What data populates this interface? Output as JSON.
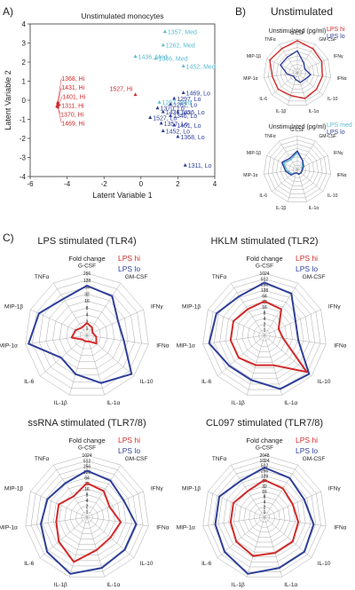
{
  "panel_labels": {
    "A": "A)",
    "B": "B)",
    "C": "C)"
  },
  "colors": {
    "hi": "#d42a2a",
    "lo": "#2e3f9a",
    "med": "#5bbcd0",
    "grid": "#aaaaaa",
    "text": "#222222"
  },
  "radar_axes": [
    "G-CSF",
    "GM-CSF",
    "IFNγ",
    "IFNα",
    "IL-10",
    "IL-1α",
    "IL-1β",
    "IL-6",
    "MIP-1α",
    "MIP-1β",
    "TNFα"
  ],
  "chart_data": [
    {
      "type": "scatter",
      "title": "Unstimulated monocytes",
      "xlabel": "Latent Variable 1",
      "ylabel": "Latent Variable 2",
      "xlim": [
        -6,
        4
      ],
      "ylim": [
        -4,
        4
      ],
      "xticks": [
        "-6",
        "-4",
        "-2",
        "0",
        "2",
        "4"
      ],
      "yticks": [
        "-4",
        "-3",
        "-2",
        "-1",
        "0",
        "1",
        "2",
        "3",
        "4"
      ],
      "series": [
        {
          "group": "hi",
          "points": [
            {
              "x": -4.5,
              "y": -0.1,
              "label": "1368, Hi"
            },
            {
              "x": -4.5,
              "y": -0.15,
              "label": "1431, Hi"
            },
            {
              "x": -4.45,
              "y": -0.2,
              "label": "1401, Hi"
            },
            {
              "x": -4.5,
              "y": -0.25,
              "label": "1311, Hi"
            },
            {
              "x": -4.55,
              "y": -0.3,
              "label": "1370, Hi"
            },
            {
              "x": -4.5,
              "y": -0.35,
              "label": "1469, Hi"
            },
            {
              "x": -0.3,
              "y": 0.3,
              "label": "1527, Hi"
            }
          ]
        },
        {
          "group": "med",
          "points": [
            {
              "x": 1.3,
              "y": 3.6,
              "label": "1357, Med"
            },
            {
              "x": 1.2,
              "y": 2.9,
              "label": "1262, Med"
            },
            {
              "x": -0.3,
              "y": 2.3,
              "label": "1436, Med"
            },
            {
              "x": 0.8,
              "y": 2.2,
              "label": "1346, Med"
            },
            {
              "x": 2.3,
              "y": 1.8,
              "label": "1452, Med"
            },
            {
              "x": 1.0,
              "y": -0.1,
              "label": "1297, Med"
            }
          ]
        },
        {
          "group": "lo",
          "points": [
            {
              "x": 2.3,
              "y": 0.4,
              "label": "1469, Lo"
            },
            {
              "x": 1.8,
              "y": 0.1,
              "label": "1297, Lo"
            },
            {
              "x": 1.6,
              "y": -0.2,
              "label": "1262, Lo"
            },
            {
              "x": 0.9,
              "y": -0.4,
              "label": "1370, Lo"
            },
            {
              "x": 1.2,
              "y": -0.6,
              "label": "1431, Lo"
            },
            {
              "x": 2.0,
              "y": -0.6,
              "label": "1436, Lo"
            },
            {
              "x": 1.6,
              "y": -0.8,
              "label": "1346, Lo"
            },
            {
              "x": 0.5,
              "y": -0.9,
              "label": "1527, Lo"
            },
            {
              "x": 1.1,
              "y": -1.2,
              "label": "1357, Lo"
            },
            {
              "x": 1.8,
              "y": -1.3,
              "label": "1401, Lo"
            },
            {
              "x": 1.2,
              "y": -1.6,
              "label": "1452, Lo"
            },
            {
              "x": 2.0,
              "y": -1.9,
              "label": "1368, Lo"
            },
            {
              "x": 2.4,
              "y": -3.4,
              "label": "1311, Lo"
            }
          ]
        }
      ]
    },
    {
      "type": "radar",
      "section_title": "Unstimulated",
      "title": "Unstimulated (pg/ml)",
      "legend": [
        {
          "key": "hi",
          "name": "LPS hi"
        },
        {
          "key": "lo",
          "name": "LPS lo"
        }
      ],
      "series": [
        {
          "key": "hi",
          "values": [
            0.95,
            0.85,
            0.8,
            0.75,
            0.75,
            0.8,
            0.7,
            0.75,
            0.75,
            0.9,
            0.85
          ]
        },
        {
          "key": "lo",
          "values": [
            0.65,
            0.35,
            0.25,
            0.4,
            0.3,
            0.3,
            0.2,
            0.15,
            0.3,
            0.55,
            0.55
          ]
        }
      ]
    },
    {
      "type": "radar",
      "title": "Unstimulated (pg/ml)",
      "legend": [
        {
          "key": "med",
          "name": "LPS med"
        },
        {
          "key": "lo",
          "name": "LPS lo"
        }
      ],
      "series": [
        {
          "key": "med",
          "values": [
            0.5,
            0.3,
            0.15,
            0.15,
            0.15,
            0.15,
            0.1,
            0.2,
            0.3,
            0.45,
            0.35
          ]
        },
        {
          "key": "lo",
          "values": [
            0.55,
            0.3,
            0.2,
            0.15,
            0.15,
            0.15,
            0.1,
            0.25,
            0.35,
            0.5,
            0.4
          ]
        }
      ]
    },
    {
      "type": "radar",
      "section_title": "LPS stimulated (TLR4)",
      "title": "Fold change",
      "ticks": [
        "256",
        "128",
        "64",
        "32",
        "16",
        "8",
        "4",
        "2",
        "1"
      ],
      "legend": [
        {
          "key": "hi",
          "name": "LPS hi"
        },
        {
          "key": "lo",
          "name": "LPS lo"
        }
      ],
      "series": [
        {
          "key": "hi",
          "values": [
            0.2,
            0.15,
            0.1,
            0.15,
            0.2,
            0.1,
            0.1,
            0.1,
            0.25,
            0.2,
            0.15
          ]
        },
        {
          "key": "lo",
          "values": [
            0.8,
            0.75,
            0.55,
            0.6,
            0.95,
            0.8,
            0.65,
            0.55,
            0.95,
            0.85,
            0.7
          ]
        }
      ]
    },
    {
      "type": "radar",
      "section_title": "HKLM stimulated (TLR2)",
      "title": "Fold change",
      "ticks": [
        "1024",
        "512",
        "256",
        "128",
        "64",
        "32",
        "16",
        "8",
        "4",
        "2",
        "1"
      ],
      "legend": [
        {
          "key": "hi",
          "name": "LPS hi"
        },
        {
          "key": "lo",
          "name": "LPS lo"
        }
      ],
      "series": [
        {
          "key": "hi",
          "values": [
            0.55,
            0.5,
            0.25,
            0.3,
            0.9,
            0.5,
            0.5,
            0.55,
            0.55,
            0.55,
            0.5
          ]
        },
        {
          "key": "lo",
          "values": [
            0.85,
            0.8,
            0.55,
            0.55,
            0.95,
            0.9,
            0.75,
            0.75,
            0.9,
            0.85,
            0.75
          ]
        }
      ]
    },
    {
      "type": "radar",
      "section_title": "ssRNA stimulated (TLR7/8)",
      "title": "Fold change",
      "ticks": [
        "1024",
        "512",
        "256",
        "128",
        "64",
        "32",
        "16",
        "8",
        "4",
        "2",
        "1"
      ],
      "legend": [
        {
          "key": "hi",
          "name": "LPS hi"
        },
        {
          "key": "lo",
          "name": "LPS lo"
        }
      ],
      "series": [
        {
          "key": "hi",
          "values": [
            0.55,
            0.5,
            0.4,
            0.55,
            0.5,
            0.55,
            0.75,
            0.6,
            0.5,
            0.5,
            0.4
          ]
        },
        {
          "key": "lo",
          "values": [
            0.75,
            0.7,
            0.65,
            0.8,
            0.8,
            0.85,
            0.95,
            0.85,
            0.75,
            0.7,
            0.65
          ]
        }
      ]
    },
    {
      "type": "radar",
      "section_title": "CL097 stimulated (TLR7/8)",
      "title": "Fold change",
      "ticks": [
        "2048",
        "1024",
        "512",
        "256",
        "128",
        "64",
        "32",
        "16",
        "8",
        "4",
        "2",
        "1"
      ],
      "legend": [
        {
          "key": "hi",
          "name": "LPS hi"
        },
        {
          "key": "lo",
          "name": "LPS lo"
        }
      ],
      "series": [
        {
          "key": "hi",
          "values": [
            0.6,
            0.55,
            0.5,
            0.55,
            0.6,
            0.6,
            0.65,
            0.6,
            0.55,
            0.55,
            0.5
          ]
        },
        {
          "key": "lo",
          "values": [
            0.8,
            0.75,
            0.7,
            0.8,
            0.85,
            0.85,
            0.95,
            0.85,
            0.8,
            0.8,
            0.7
          ]
        }
      ]
    }
  ]
}
